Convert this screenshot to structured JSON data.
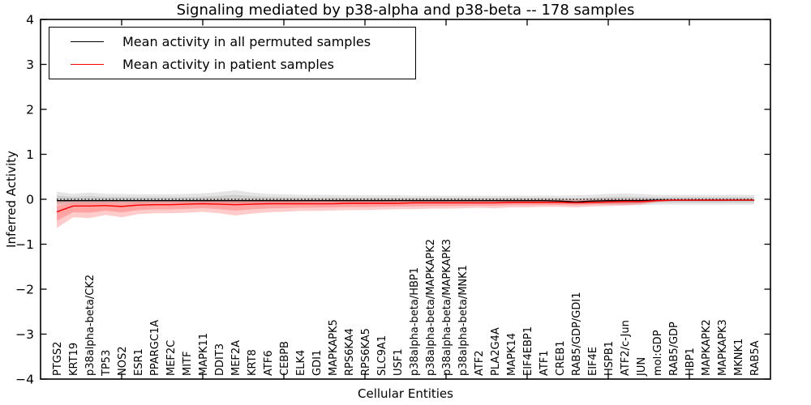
{
  "chart_data": {
    "type": "line",
    "title": "Signaling mediated by p38-alpha and p38-beta -- 178 samples",
    "xlabel": "Cellular Entities",
    "ylabel": "Inferred Activity",
    "ylim": [
      -4,
      4
    ],
    "xlim": [
      0,
      45
    ],
    "x_major_tick_step": 5,
    "grid": false,
    "legend_position": "upper left",
    "zero_line": true,
    "ytick_labels": [
      "4",
      "3",
      "2",
      "1",
      "0",
      "−1",
      "−2",
      "−3",
      "−4"
    ],
    "ytick_values": [
      4,
      3,
      2,
      1,
      0,
      -1,
      -2,
      -3,
      -4
    ],
    "categories": [
      "PTGS2",
      "KRT19",
      "p38alpha-beta/CK2",
      "TP53",
      "NOS2",
      "ESR1",
      "PPARGC1A",
      "MEF2C",
      "MITF",
      "MAPK11",
      "DDIT3",
      "MEF2A",
      "KRT8",
      "ATF6",
      "CEBPB",
      "ELK4",
      "GDI1",
      "MAPKAPK5",
      "RPS6KA4",
      "RPS6KA5",
      "SLC9A1",
      "USF1",
      "p38alpha-beta/HBP1",
      "p38alpha-beta/MAPKAPK2",
      "p38alpha-beta/MAPKAPK3",
      "p38alpha-beta/MNK1",
      "ATF2",
      "PLA2G4A",
      "MAPK14",
      "EIF4EBP1",
      "ATF1",
      "CREB1",
      "RAB5/GDP/GDI1",
      "EIF4E",
      "HSPB1",
      "ATF2/c-Jun",
      "JUN",
      "mol:GDP",
      "RAB5/GDP",
      "HBP1",
      "MAPKAPK2",
      "MAPKAPK3",
      "MKNK1",
      "RAB5A"
    ],
    "series": [
      {
        "name": "Mean activity in all permuted samples",
        "color": "#000000",
        "band_color": "#000000",
        "band_alpha": 0.1,
        "mean": [
          -0.03,
          -0.03,
          -0.03,
          -0.03,
          -0.03,
          -0.03,
          -0.03,
          -0.03,
          -0.03,
          -0.03,
          -0.03,
          -0.03,
          -0.03,
          -0.03,
          -0.03,
          -0.03,
          -0.03,
          -0.03,
          -0.03,
          -0.03,
          -0.03,
          -0.03,
          -0.03,
          -0.03,
          -0.03,
          -0.03,
          -0.03,
          -0.03,
          -0.03,
          -0.03,
          -0.03,
          -0.04,
          -0.06,
          -0.04,
          -0.03,
          -0.03,
          -0.03,
          -0.02,
          -0.02,
          -0.02,
          -0.02,
          -0.02,
          -0.02,
          -0.02
        ],
        "upper": [
          0.17,
          0.12,
          0.15,
          0.12,
          0.12,
          0.11,
          0.11,
          0.11,
          0.12,
          0.13,
          0.16,
          0.2,
          0.15,
          0.12,
          0.11,
          0.1,
          0.1,
          0.1,
          0.09,
          0.09,
          0.09,
          0.09,
          0.08,
          0.08,
          0.08,
          0.08,
          0.08,
          0.08,
          0.08,
          0.08,
          0.08,
          0.08,
          0.09,
          0.1,
          0.12,
          0.13,
          0.12,
          0.1,
          0.1,
          0.1,
          0.1,
          0.1,
          0.1,
          0.1
        ],
        "lower": [
          -0.13,
          -0.1,
          -0.1,
          -0.09,
          -0.09,
          -0.09,
          -0.08,
          -0.08,
          -0.08,
          -0.08,
          -0.08,
          -0.09,
          -0.08,
          -0.08,
          -0.08,
          -0.08,
          -0.07,
          -0.07,
          -0.07,
          -0.07,
          -0.07,
          -0.06,
          -0.06,
          -0.06,
          -0.06,
          -0.06,
          -0.06,
          -0.06,
          -0.06,
          -0.07,
          -0.07,
          -0.08,
          -0.1,
          -0.1,
          -0.12,
          -0.13,
          -0.13,
          -0.12,
          -0.12,
          -0.12,
          -0.12,
          -0.12,
          -0.12,
          -0.12
        ]
      },
      {
        "name": "Mean activity in patient samples",
        "color": "#ff0000",
        "band_color": "#ff0000",
        "band_alpha": 0.2,
        "mean": [
          -0.28,
          -0.15,
          -0.15,
          -0.14,
          -0.16,
          -0.13,
          -0.12,
          -0.12,
          -0.11,
          -0.1,
          -0.11,
          -0.12,
          -0.11,
          -0.1,
          -0.1,
          -0.1,
          -0.1,
          -0.1,
          -0.09,
          -0.09,
          -0.09,
          -0.09,
          -0.08,
          -0.08,
          -0.08,
          -0.08,
          -0.08,
          -0.08,
          -0.07,
          -0.07,
          -0.07,
          -0.07,
          -0.08,
          -0.07,
          -0.06,
          -0.05,
          -0.05,
          -0.03,
          -0.02,
          -0.02,
          -0.02,
          -0.02,
          -0.02,
          -0.02
        ],
        "upper": [
          -0.04,
          -0.02,
          -0.02,
          -0.02,
          -0.02,
          -0.02,
          -0.02,
          -0.02,
          -0.02,
          -0.01,
          -0.01,
          -0.01,
          -0.01,
          -0.01,
          -0.01,
          -0.01,
          -0.01,
          -0.01,
          -0.01,
          -0.01,
          -0.01,
          -0.01,
          -0.01,
          -0.01,
          -0.01,
          -0.01,
          -0.01,
          -0.01,
          -0.01,
          -0.01,
          -0.01,
          -0.01,
          -0.01,
          -0.01,
          0.0,
          0.0,
          0.0,
          -0.01,
          -0.01,
          -0.01,
          -0.01,
          -0.01,
          -0.01,
          -0.01
        ],
        "lower": [
          -0.64,
          -0.4,
          -0.42,
          -0.35,
          -0.4,
          -0.33,
          -0.31,
          -0.31,
          -0.3,
          -0.28,
          -0.31,
          -0.36,
          -0.32,
          -0.29,
          -0.28,
          -0.26,
          -0.26,
          -0.25,
          -0.24,
          -0.24,
          -0.23,
          -0.22,
          -0.22,
          -0.21,
          -0.21,
          -0.2,
          -0.19,
          -0.2,
          -0.18,
          -0.18,
          -0.17,
          -0.17,
          -0.18,
          -0.16,
          -0.15,
          -0.14,
          -0.12,
          -0.06,
          -0.04,
          -0.04,
          -0.04,
          -0.04,
          -0.03,
          -0.03
        ]
      }
    ]
  }
}
